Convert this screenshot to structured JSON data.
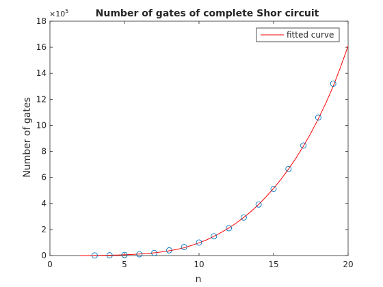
{
  "chart_data": {
    "type": "scatter",
    "title": "Number of gates of complete Shor circuit",
    "xlabel": "n",
    "ylabel": "Number of gates",
    "y_exponent_base": "×10",
    "y_exponent_power": "5",
    "xlim": [
      0,
      20
    ],
    "ylim": [
      0,
      18
    ],
    "x_ticks": [
      0,
      5,
      10,
      15,
      20
    ],
    "y_ticks": [
      0,
      2,
      4,
      6,
      8,
      10,
      12,
      14,
      16,
      18
    ],
    "legend_position": "top-right",
    "legend": [
      {
        "label": "fitted curve",
        "color": "#ff0000"
      }
    ],
    "series": [
      {
        "marker": "circle",
        "color": "#0072bd",
        "x": [
          3,
          4,
          5,
          6,
          7,
          8,
          9,
          10,
          11,
          12,
          13,
          14,
          15,
          16,
          17,
          18,
          19
        ],
        "y": [
          0.01,
          0.02,
          0.05,
          0.1,
          0.2,
          0.4,
          0.65,
          1.0,
          1.48,
          2.1,
          2.92,
          3.92,
          5.12,
          6.65,
          8.45,
          10.6,
          13.2
        ]
      },
      {
        "marker": "line",
        "color": "#ff0000",
        "x": [
          2,
          2.5,
          3,
          3.5,
          4,
          4.5,
          5,
          5.5,
          6,
          6.5,
          7,
          7.5,
          8,
          8.5,
          9,
          9.5,
          10,
          10.5,
          11,
          11.5,
          12,
          12.5,
          13,
          13.5,
          14,
          14.5,
          15,
          15.5,
          16,
          16.5,
          17,
          17.5,
          18,
          18.5,
          19,
          19.5,
          20
        ],
        "y": [
          0,
          0.002,
          0.008,
          0.016,
          0.026,
          0.04,
          0.06,
          0.085,
          0.115,
          0.16,
          0.21,
          0.28,
          0.37,
          0.47,
          0.6,
          0.78,
          0.98,
          1.2,
          1.48,
          1.78,
          2.12,
          2.5,
          2.93,
          3.4,
          3.93,
          4.52,
          5.15,
          5.86,
          6.64,
          7.48,
          8.4,
          9.4,
          10.5,
          11.7,
          13.0,
          14.5,
          16.1
        ]
      }
    ]
  }
}
